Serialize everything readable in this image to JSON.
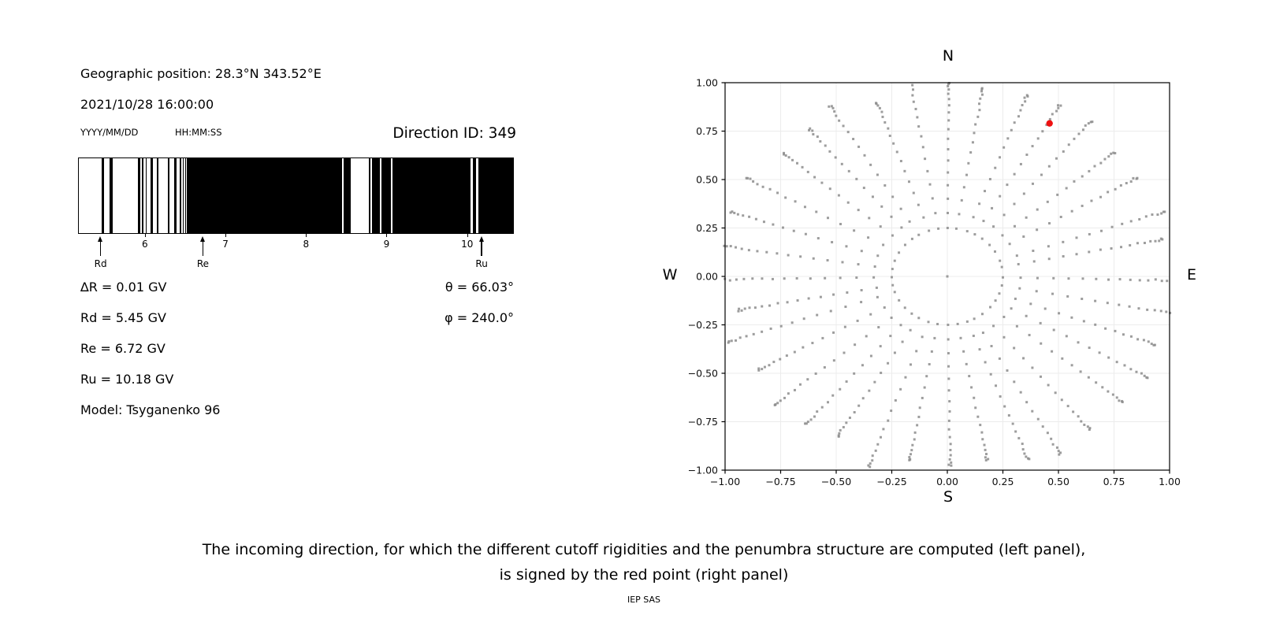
{
  "left_panel": {
    "geo_position": "Geographic position: 28.3°N 343.52°E",
    "datetime": "2021/10/28 16:00:00",
    "date_format_hint": "YYYY/MM/DD",
    "time_format_hint": "HH:MM:SS",
    "direction_id": "Direction ID: 349",
    "penumbra": {
      "axis_min": 5.17,
      "axis_max": 10.58,
      "tick_values": [
        6,
        7,
        8,
        9,
        10
      ],
      "bar_color": "#000000",
      "black_segments": [
        [
          5.45,
          5.48
        ],
        [
          5.55,
          5.59
        ],
        [
          5.91,
          5.94
        ],
        [
          5.952,
          5.972
        ],
        [
          6.0,
          6.012
        ],
        [
          6.06,
          6.092
        ],
        [
          6.14,
          6.16
        ],
        [
          6.277,
          6.303
        ],
        [
          6.359,
          6.384
        ],
        [
          6.427,
          6.443
        ],
        [
          6.468,
          6.48
        ],
        [
          6.499,
          6.507
        ],
        [
          6.52,
          8.452
        ],
        [
          8.472,
          8.556
        ],
        [
          8.781,
          8.801
        ],
        [
          8.822,
          8.921
        ],
        [
          8.941,
          9.058
        ],
        [
          9.08,
          10.052
        ],
        [
          10.082,
          10.122
        ],
        [
          10.152,
          10.58
        ]
      ],
      "markers": [
        {
          "label": "Rd",
          "value": 5.45
        },
        {
          "label": "Re",
          "value": 6.72
        },
        {
          "label": "Ru",
          "value": 10.18
        }
      ]
    },
    "readouts": {
      "delta_r": "∆R = 0.01 GV",
      "rd": "Rd = 5.45 GV",
      "re": "Re = 6.72 GV",
      "ru": "Ru = 10.18 GV",
      "model": "Model: Tsyganenko 96",
      "theta": "θ = 66.03°",
      "phi": "φ = 240.0°"
    }
  },
  "chart_data": {
    "type": "scatter",
    "description": "Asymptotic incoming directions: 36 radial dot rays every 10 degrees from r=0.25 to r=1.0, dots bunching toward outer ends; red point marks the computed incoming direction",
    "compass": {
      "north": "N",
      "south": "S",
      "east": "E",
      "west": "W"
    },
    "xlim": [
      -1,
      1
    ],
    "ylim": [
      -1,
      1
    ],
    "tick_values": [
      -1,
      -0.75,
      -0.5,
      -0.25,
      0,
      0.25,
      0.5,
      0.75,
      1
    ],
    "xtick_labels": [
      "−1.00",
      "−0.75",
      "−0.50",
      "−0.25",
      "0.00",
      "0.25",
      "0.50",
      "0.75",
      "1.00"
    ],
    "ytick_labels": [
      "1.00",
      "0.75",
      "0.50",
      "0.25",
      "0.00",
      "−0.25",
      "−0.50",
      "−0.75",
      "−1.00"
    ],
    "grid": true,
    "grid_color": "#ececec",
    "spine_color": "#000000",
    "dot_color": "#8c8c8c",
    "center_dot": {
      "x": 0,
      "y": 0
    },
    "rays": {
      "count": 36,
      "azimuth_start_deg": 0,
      "azimuth_step_deg": 10,
      "r_start": 0.25,
      "r_end": 1.0,
      "points_per_ray": 18,
      "end_density_exponent": 1.8,
      "r_end_jitter": 0.05,
      "azimuth_jitter_deg": 1.2
    },
    "red_point": {
      "x": 0.46,
      "y": 0.79,
      "color": "#ee1111"
    }
  },
  "caption": {
    "line1": "The incoming direction, for which the different cutoff rigidities and the penumbra structure are computed (left panel),",
    "line2": "is signed by the red point (right panel)",
    "credit": "IEP SAS"
  }
}
